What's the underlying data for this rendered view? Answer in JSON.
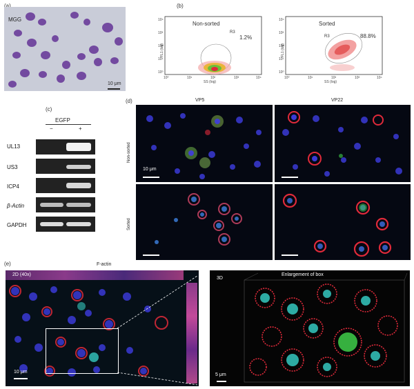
{
  "panels": {
    "a": {
      "label": "(a)",
      "stain": "MGG",
      "scale": "10 μm"
    },
    "b": {
      "label": "(b)",
      "plots": [
        {
          "title": "Non-sorted",
          "gate": "R3",
          "percent": "1.2%",
          "ylabel": "FL1 (log)",
          "xlabel": "SS (log)"
        },
        {
          "title": "Sorted",
          "gate": "R3",
          "percent": "88.8%",
          "ylabel": "FL1 (log)",
          "xlabel": "SS (log)"
        }
      ],
      "yticks": [
        "10⁴",
        "10³",
        "10²",
        "10¹",
        "10⁰"
      ],
      "xticks": [
        "10⁰",
        "10¹",
        "10²",
        "10³",
        "10⁴"
      ]
    },
    "c": {
      "label": "(c)",
      "header": "EGFP",
      "lanes": [
        "−",
        "+"
      ],
      "rows": [
        "UL13",
        "US3",
        "ICP4",
        "β-Actin",
        "GAPDH"
      ]
    },
    "d": {
      "label": "(d)",
      "columns": [
        "VP5",
        "VP22"
      ],
      "rows": [
        "Non-sorted",
        "Sorted"
      ],
      "scale": "10 μm"
    },
    "e": {
      "label": "(e)",
      "title": "F-actin",
      "left_tag": "2D (40x)",
      "right_tag": "3D",
      "right_title": "Enlargement of box",
      "left_scale": "10 μm",
      "right_scale": "5 μm"
    }
  },
  "colors": {
    "nucleus": "#3a3ad6",
    "actin": "#e02a3a",
    "gfp": "#3fcf4a",
    "cyan": "#35c8c0",
    "mgg": "#6a3c9a"
  }
}
